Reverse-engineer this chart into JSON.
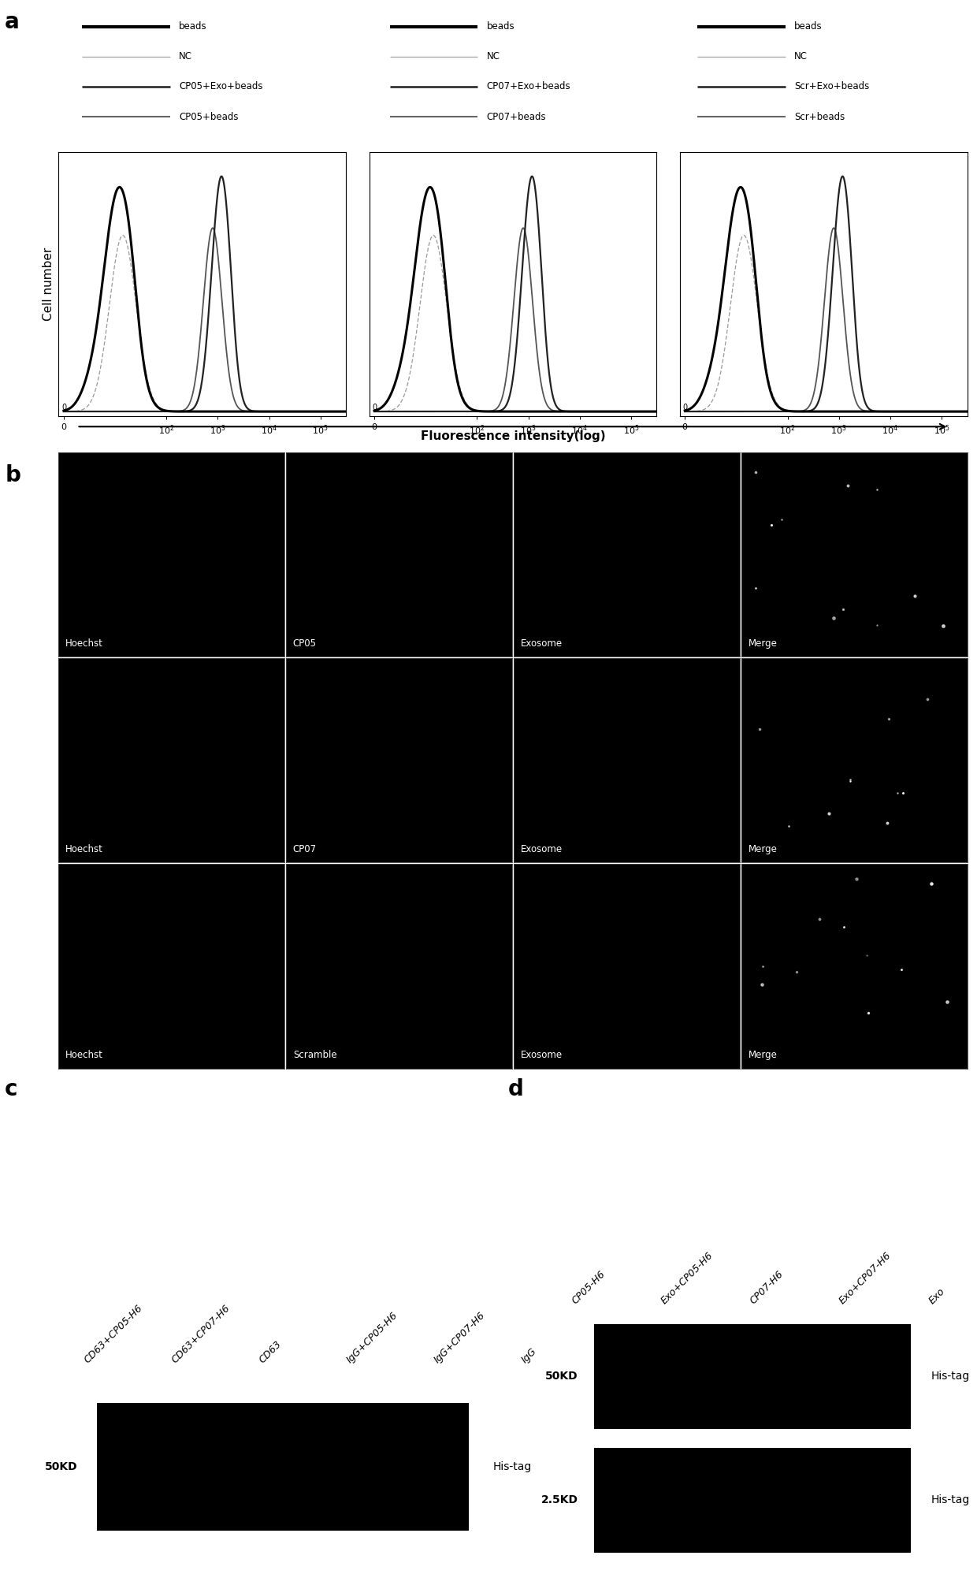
{
  "panel_a": {
    "legend_sets": [
      [
        "beads",
        "NC",
        "CP05+Exo+beads",
        "CP05+beads"
      ],
      [
        "beads",
        "NC",
        "CP07+Exo+beads",
        "CP07+beads"
      ],
      [
        "beads",
        "NC",
        "Scr+Exo+beads",
        "Scr+beads"
      ]
    ],
    "x_label": "Fluorescence intensity(log)",
    "y_label": "Cell number",
    "x_ticks_pos": [
      0,
      2,
      3,
      4,
      5
    ],
    "x_ticks_labels": [
      "0",
      "$10^2$",
      "$10^3$",
      "$10^4$",
      "$10^5$"
    ]
  },
  "panel_b": {
    "rows": [
      [
        "Hoechst",
        "CP05",
        "Exosome",
        "Merge"
      ],
      [
        "Hoechst",
        "CP07",
        "Exosome",
        "Merge"
      ],
      [
        "Hoechst",
        "Scramble",
        "Exosome",
        "Merge"
      ]
    ]
  },
  "panel_c": {
    "columns": [
      "CD63+CP05-H6",
      "CD63+CP07-H6",
      "CD63",
      "IgG+CP05-H6",
      "IgG+CP07-H6",
      "IgG"
    ],
    "marker": "50KD",
    "tag": "His-tag"
  },
  "panel_d": {
    "columns": [
      "CP05-H6",
      "Exo+CP05-H6",
      "CP07-H6",
      "Exo+CP07-H6",
      "Exo"
    ],
    "markers": [
      "50KD",
      "2.5KD"
    ],
    "tag": "His-tag"
  },
  "bg_color": "#ffffff",
  "black": "#000000",
  "label_fontsize": 20,
  "tick_fontsize": 8,
  "legend_fontsize": 8.5
}
